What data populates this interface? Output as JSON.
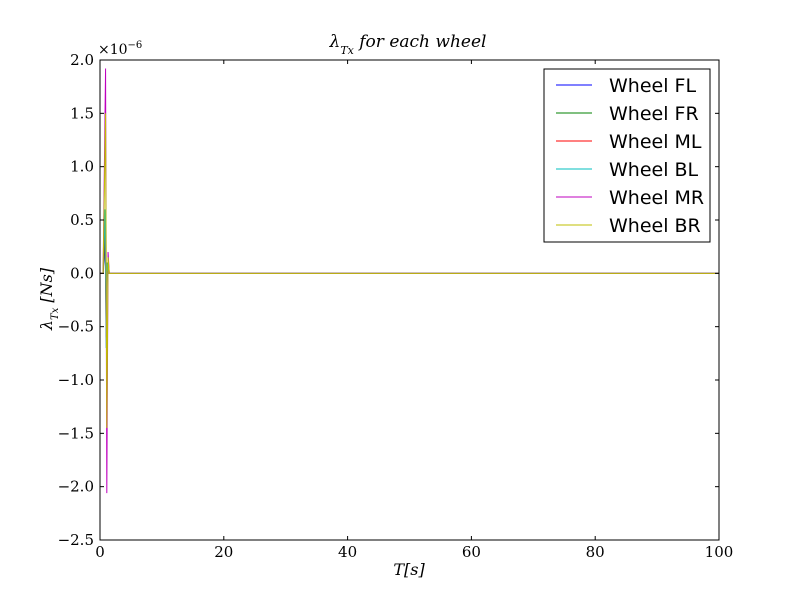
{
  "chart_data": {
    "type": "line",
    "title": "λ_Tx for each wheel",
    "title_main": "λ",
    "title_sub": "Tx",
    "title_rest": " for each wheel",
    "xlabel": "T[s]",
    "ylabel": "λ_Tx [Ns]",
    "ylabel_main": "λ",
    "ylabel_sub": "Tx",
    "ylabel_rest": " [Ns]",
    "y_multiplier_text": "×10",
    "y_multiplier_exp": "−6",
    "xlim": [
      0,
      100
    ],
    "ylim": [
      -2.5,
      2.0
    ],
    "y_scale": 1e-06,
    "xticks": [
      0,
      20,
      40,
      60,
      80,
      100
    ],
    "xtick_labels": [
      "0",
      "20",
      "40",
      "60",
      "80",
      "100"
    ],
    "yticks": [
      -2.5,
      -2.0,
      -1.5,
      -1.0,
      -0.5,
      0.0,
      0.5,
      1.0,
      1.5,
      2.0
    ],
    "ytick_labels": [
      "−2.5",
      "−2.0",
      "−1.5",
      "−1.0",
      "−0.5",
      "0.0",
      "0.5",
      "1.0",
      "1.5",
      "2.0"
    ],
    "legend_position": "top-right",
    "series": [
      {
        "name": "Wheel FL",
        "color": "#0000ff",
        "x": [
          0,
          0.5,
          0.8,
          1.0,
          1.1,
          1.3,
          100
        ],
        "y": [
          0,
          0,
          0.3,
          -0.3,
          0.1,
          0,
          0
        ]
      },
      {
        "name": "Wheel FR",
        "color": "#008000",
        "x": [
          0,
          0.5,
          0.8,
          1.0,
          1.1,
          1.3,
          100
        ],
        "y": [
          0,
          0,
          0.4,
          -0.4,
          0.1,
          0,
          0
        ]
      },
      {
        "name": "Wheel ML",
        "color": "#ff0000",
        "x": [
          0,
          0.5,
          0.8,
          1.0,
          1.1,
          1.3,
          100
        ],
        "y": [
          0,
          0,
          0.5,
          -0.6,
          0.1,
          0,
          0
        ]
      },
      {
        "name": "Wheel BL",
        "color": "#00bfbf",
        "x": [
          0,
          0.5,
          0.8,
          1.0,
          1.1,
          1.3,
          100
        ],
        "y": [
          0,
          0,
          0.6,
          -0.7,
          0.1,
          0,
          0
        ]
      },
      {
        "name": "Wheel MR",
        "color": "#bf00bf",
        "x": [
          0,
          0.5,
          0.9,
          1.1,
          1.3,
          1.5,
          100
        ],
        "y": [
          0,
          0,
          1.92,
          -2.06,
          0.2,
          0,
          0
        ]
      },
      {
        "name": "Wheel BR",
        "color": "#bfbf00",
        "x": [
          0,
          0.5,
          0.9,
          1.1,
          1.3,
          1.5,
          100
        ],
        "y": [
          0,
          0,
          1.5,
          -1.45,
          0.15,
          0,
          0
        ]
      }
    ]
  }
}
